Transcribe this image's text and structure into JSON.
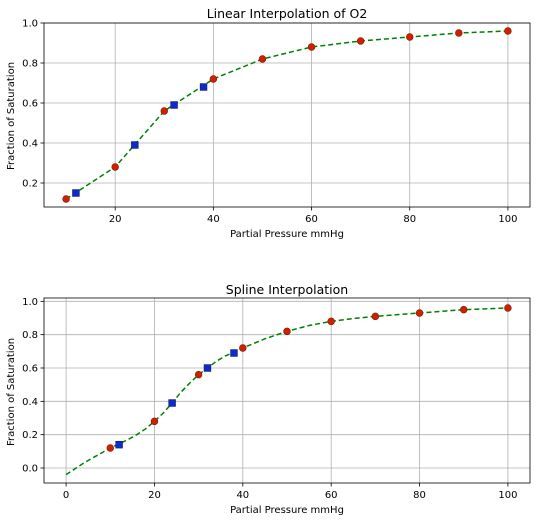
{
  "colors": {
    "curve": "#008000",
    "data_marker": "#cc2200",
    "data_marker_edge": "#8a1400",
    "interp_marker": "#0b2cc9",
    "interp_marker_edge": "#0a1a6a",
    "grid": "#b0b0b0",
    "axes": "#000000"
  },
  "chart_data": [
    {
      "type": "line",
      "title": "Linear Interpolation of O2",
      "xlabel": "Partial Pressure mmHg",
      "ylabel": "Fraction of Saturation",
      "xlim": [
        5.5,
        104.5
      ],
      "ylim": [
        0.08,
        1.0
      ],
      "xticks": [
        20,
        40,
        60,
        80,
        100
      ],
      "yticks": [
        0.2,
        0.4,
        0.6,
        0.8,
        1.0
      ],
      "xtick_labels": [
        "20",
        "40",
        "60",
        "80",
        "100"
      ],
      "ytick_labels": [
        "0.2",
        "0.4",
        "0.6",
        "0.8",
        "1.0"
      ],
      "grid": true,
      "series": [
        {
          "style": "dashed-line",
          "x": [
            10,
            20,
            30,
            40,
            50,
            60,
            70,
            80,
            90,
            100
          ],
          "y": [
            0.12,
            0.28,
            0.56,
            0.72,
            0.82,
            0.88,
            0.91,
            0.93,
            0.95,
            0.96
          ]
        },
        {
          "style": "circle-markers",
          "x": [
            10,
            20,
            30,
            40,
            50,
            60,
            70,
            80,
            90,
            100
          ],
          "y": [
            0.12,
            0.28,
            0.56,
            0.72,
            0.82,
            0.88,
            0.91,
            0.93,
            0.95,
            0.96
          ]
        },
        {
          "style": "square-markers",
          "x": [
            12,
            24,
            32,
            38
          ],
          "y": [
            0.15,
            0.39,
            0.59,
            0.68
          ]
        }
      ]
    },
    {
      "type": "line",
      "title": "Spline Interpolation",
      "xlabel": "Partial Pressure mmHg",
      "ylabel": "Fraction of Saturation",
      "xlim": [
        -5,
        105
      ],
      "ylim": [
        -0.09,
        1.02
      ],
      "xticks": [
        0,
        20,
        40,
        60,
        80,
        100
      ],
      "yticks": [
        0.0,
        0.2,
        0.4,
        0.6,
        0.8,
        1.0
      ],
      "xtick_labels": [
        "0",
        "20",
        "40",
        "60",
        "80",
        "100"
      ],
      "ytick_labels": [
        "0.0",
        "0.2",
        "0.4",
        "0.6",
        "0.8",
        "1.0"
      ],
      "grid": true,
      "series": [
        {
          "style": "dashed-line",
          "x": [
            0,
            2,
            4,
            6,
            8,
            10,
            12,
            14,
            16,
            18,
            20,
            22,
            24,
            26,
            28,
            30,
            32,
            34,
            36,
            38,
            40,
            45,
            50,
            55,
            60,
            65,
            70,
            75,
            80,
            85,
            90,
            95,
            100
          ],
          "y": [
            -0.04,
            -0.005,
            0.03,
            0.06,
            0.09,
            0.12,
            0.145,
            0.17,
            0.2,
            0.235,
            0.28,
            0.33,
            0.39,
            0.455,
            0.51,
            0.56,
            0.6,
            0.64,
            0.672,
            0.695,
            0.72,
            0.775,
            0.82,
            0.855,
            0.88,
            0.897,
            0.91,
            0.92,
            0.93,
            0.94,
            0.95,
            0.955,
            0.96
          ]
        },
        {
          "style": "circle-markers",
          "x": [
            10,
            20,
            30,
            40,
            50,
            60,
            70,
            80,
            90,
            100
          ],
          "y": [
            0.12,
            0.28,
            0.56,
            0.72,
            0.82,
            0.88,
            0.91,
            0.93,
            0.95,
            0.96
          ]
        },
        {
          "style": "square-markers",
          "x": [
            12,
            24,
            32,
            38
          ],
          "y": [
            0.14,
            0.39,
            0.6,
            0.69
          ]
        }
      ]
    }
  ]
}
